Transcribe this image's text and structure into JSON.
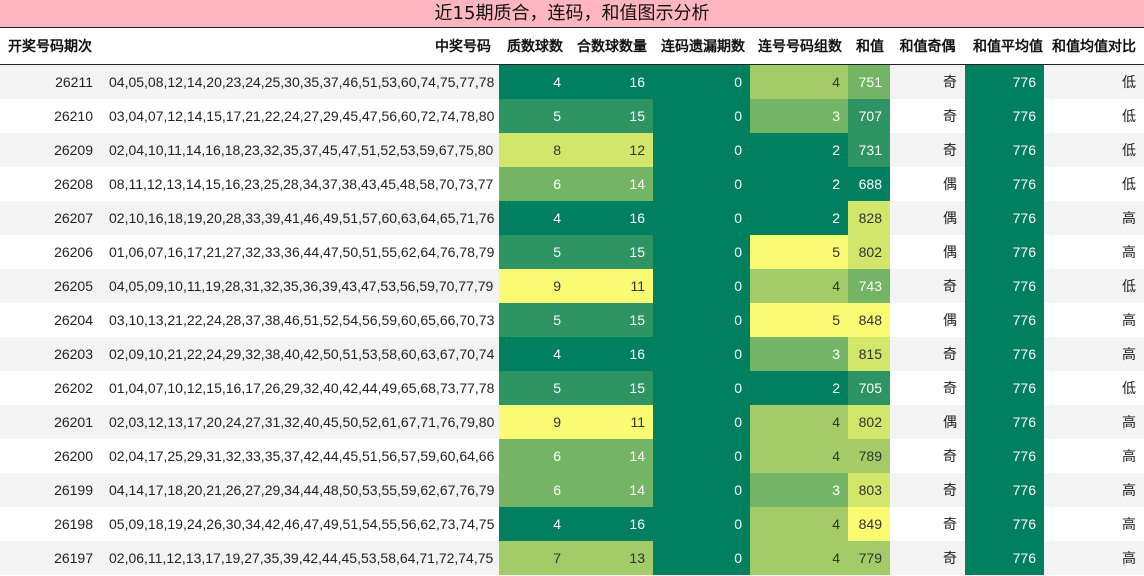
{
  "title": "近15期质合，连码，和值图示分析",
  "columns": [
    "开奖号码期次",
    "中奖号码",
    "质数球数",
    "合数球数量",
    "连码遗漏期数",
    "连号号码组数",
    "和值",
    "和值奇偶",
    "和值平均值",
    "和值均值对比"
  ],
  "colors": {
    "c5": "#00805f",
    "c4": "#2e9464",
    "c3": "#74b565",
    "c2": "#a3cc68",
    "c1": "#d1e66a",
    "c0": "#fbfa73"
  },
  "chart_data": {
    "type": "table",
    "rows": [
      {
        "period": "26211",
        "numbers": "04,05,08,12,14,20,23,24,25,30,35,37,46,51,53,60,74,75,77,78",
        "primes": 4,
        "composites": 16,
        "gap": 0,
        "groups": 4,
        "sum": 751,
        "parity": "奇",
        "avg": 776,
        "cmp": "低"
      },
      {
        "period": "26210",
        "numbers": "03,04,07,12,14,15,17,21,22,24,27,29,45,47,56,60,72,74,78,80",
        "primes": 5,
        "composites": 15,
        "gap": 0,
        "groups": 3,
        "sum": 707,
        "parity": "奇",
        "avg": 776,
        "cmp": "低"
      },
      {
        "period": "26209",
        "numbers": "02,04,10,11,14,16,18,23,32,35,37,45,47,51,52,53,59,67,75,80",
        "primes": 8,
        "composites": 12,
        "gap": 0,
        "groups": 2,
        "sum": 731,
        "parity": "奇",
        "avg": 776,
        "cmp": "低"
      },
      {
        "period": "26208",
        "numbers": "08,11,12,13,14,15,16,23,25,28,34,37,38,43,45,48,58,70,73,77",
        "primes": 6,
        "composites": 14,
        "gap": 0,
        "groups": 2,
        "sum": 688,
        "parity": "偶",
        "avg": 776,
        "cmp": "低"
      },
      {
        "period": "26207",
        "numbers": "02,10,16,18,19,20,28,33,39,41,46,49,51,57,60,63,64,65,71,76",
        "primes": 4,
        "composites": 16,
        "gap": 0,
        "groups": 2,
        "sum": 828,
        "parity": "偶",
        "avg": 776,
        "cmp": "高"
      },
      {
        "period": "26206",
        "numbers": "01,06,07,16,17,21,27,32,33,36,44,47,50,51,55,62,64,76,78,79",
        "primes": 5,
        "composites": 15,
        "gap": 0,
        "groups": 5,
        "sum": 802,
        "parity": "偶",
        "avg": 776,
        "cmp": "高"
      },
      {
        "period": "26205",
        "numbers": "04,05,09,10,11,19,28,31,32,35,36,39,43,47,53,56,59,70,77,79",
        "primes": 9,
        "composites": 11,
        "gap": 0,
        "groups": 4,
        "sum": 743,
        "parity": "奇",
        "avg": 776,
        "cmp": "低"
      },
      {
        "period": "26204",
        "numbers": "03,10,13,21,22,24,28,37,38,46,51,52,54,56,59,60,65,66,70,73",
        "primes": 5,
        "composites": 15,
        "gap": 0,
        "groups": 5,
        "sum": 848,
        "parity": "偶",
        "avg": 776,
        "cmp": "高"
      },
      {
        "period": "26203",
        "numbers": "02,09,10,21,22,24,29,32,38,40,42,50,51,53,58,60,63,67,70,74",
        "primes": 4,
        "composites": 16,
        "gap": 0,
        "groups": 3,
        "sum": 815,
        "parity": "奇",
        "avg": 776,
        "cmp": "高"
      },
      {
        "period": "26202",
        "numbers": "01,04,07,10,12,15,16,17,26,29,32,40,42,44,49,65,68,73,77,78",
        "primes": 5,
        "composites": 15,
        "gap": 0,
        "groups": 2,
        "sum": 705,
        "parity": "奇",
        "avg": 776,
        "cmp": "低"
      },
      {
        "period": "26201",
        "numbers": "02,03,12,13,17,20,24,27,31,32,40,45,50,52,61,67,71,76,79,80",
        "primes": 9,
        "composites": 11,
        "gap": 0,
        "groups": 4,
        "sum": 802,
        "parity": "偶",
        "avg": 776,
        "cmp": "高"
      },
      {
        "period": "26200",
        "numbers": "02,04,17,25,29,31,32,33,35,37,42,44,45,51,56,57,59,60,64,66",
        "primes": 6,
        "composites": 14,
        "gap": 0,
        "groups": 4,
        "sum": 789,
        "parity": "奇",
        "avg": 776,
        "cmp": "高"
      },
      {
        "period": "26199",
        "numbers": "04,14,17,18,20,21,26,27,29,34,44,48,50,53,55,59,62,67,76,79",
        "primes": 6,
        "composites": 14,
        "gap": 0,
        "groups": 3,
        "sum": 803,
        "parity": "奇",
        "avg": 776,
        "cmp": "高"
      },
      {
        "period": "26198",
        "numbers": "05,09,18,19,24,26,30,34,42,46,47,49,51,54,55,56,62,73,74,75",
        "primes": 4,
        "composites": 16,
        "gap": 0,
        "groups": 4,
        "sum": 849,
        "parity": "奇",
        "avg": 776,
        "cmp": "高"
      },
      {
        "period": "26197",
        "numbers": "02,06,11,12,13,17,19,27,35,39,42,44,45,53,58,64,71,72,74,75",
        "primes": 7,
        "composites": 13,
        "gap": 0,
        "groups": 4,
        "sum": 779,
        "parity": "奇",
        "avg": 776,
        "cmp": "高"
      }
    ]
  }
}
